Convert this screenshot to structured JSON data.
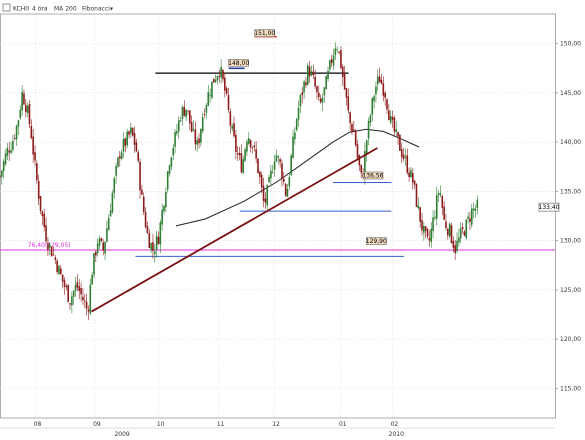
{
  "legend": {
    "symbol": "KCH0",
    "interval": "4 óra",
    "ma": "MA 200",
    "fib": "Fibonacci",
    "arrow": "▾"
  },
  "colors": {
    "candle_up": "#2e7d32",
    "candle_down": "#8b1a1a",
    "ma": "#222222",
    "trendline": "#7a1010",
    "support": "#3a5fd0",
    "resistance": "#000000",
    "fib": "#e030e0",
    "callout_bg": "#f2dcc0",
    "red_mark": "#e02020",
    "blue_mark": "#2a3fa0"
  },
  "chart_data": {
    "type": "candlestick",
    "ylim": [
      112,
      153
    ],
    "y_ticks": [
      {
        "value": 150,
        "label": "150,00"
      },
      {
        "value": 145,
        "label": "145,00"
      },
      {
        "value": 140,
        "label": "140,00"
      },
      {
        "value": 135,
        "label": "135,00"
      },
      {
        "value": 130,
        "label": "130,00"
      },
      {
        "value": 125,
        "label": "125,00"
      },
      {
        "value": 120,
        "label": "120,00"
      },
      {
        "value": 115,
        "label": "115,00"
      }
    ],
    "x_ticks": [
      {
        "label": "08",
        "pos": 0.064
      },
      {
        "label": "09",
        "pos": 0.171
      },
      {
        "label": "10",
        "pos": 0.286
      },
      {
        "label": "11",
        "pos": 0.394
      },
      {
        "label": "12",
        "pos": 0.494
      },
      {
        "label": "01",
        "pos": 0.614
      },
      {
        "label": "02",
        "pos": 0.707
      }
    ],
    "year_ticks": [
      {
        "label": "2009",
        "pos": 0.22
      },
      {
        "label": "2010",
        "pos": 0.714
      }
    ],
    "last_price": {
      "value": 133.4,
      "label": "133,40"
    },
    "callouts": [
      {
        "label": "151,00",
        "value": 151.0,
        "pos": 0.477
      },
      {
        "label": "148,00",
        "value": 148.0,
        "pos": 0.43
      },
      {
        "label": "136,56",
        "value": 136.56,
        "pos": 0.672
      },
      {
        "label": "129,90",
        "value": 129.9,
        "pos": 0.678
      }
    ],
    "fib_label": "76,40(129,05)",
    "fibonacci": {
      "level": "76,40",
      "value": 129.05
    },
    "horizontal_levels": [
      {
        "name": "resistance",
        "value": 147.0,
        "from": 0.28,
        "to": 0.628
      },
      {
        "name": "support-upper",
        "value": 135.9,
        "from": 0.6,
        "to": 0.705
      },
      {
        "name": "support-mid",
        "value": 133.0,
        "from": 0.432,
        "to": 0.705
      },
      {
        "name": "support-low",
        "value": 128.4,
        "from": 0.244,
        "to": 0.728
      }
    ],
    "trendline": {
      "from": {
        "pos": 0.165,
        "value": 122.8
      },
      "to": {
        "pos": 0.68,
        "value": 139.4
      }
    },
    "ma200": [
      {
        "pos": 0.317,
        "value": 131.5
      },
      {
        "pos": 0.37,
        "value": 132.2
      },
      {
        "pos": 0.44,
        "value": 134.0
      },
      {
        "pos": 0.5,
        "value": 136.0
      },
      {
        "pos": 0.55,
        "value": 138.0
      },
      {
        "pos": 0.6,
        "value": 140.0
      },
      {
        "pos": 0.63,
        "value": 141.0
      },
      {
        "pos": 0.66,
        "value": 141.3
      },
      {
        "pos": 0.69,
        "value": 141.1
      },
      {
        "pos": 0.72,
        "value": 140.4
      },
      {
        "pos": 0.755,
        "value": 139.5
      }
    ],
    "price_path": [
      [
        0.0,
        136.5
      ],
      [
        0.012,
        139
      ],
      [
        0.022,
        140
      ],
      [
        0.032,
        142
      ],
      [
        0.04,
        145
      ],
      [
        0.048,
        143.5
      ],
      [
        0.056,
        141
      ],
      [
        0.064,
        137
      ],
      [
        0.074,
        133
      ],
      [
        0.085,
        130
      ],
      [
        0.1,
        128
      ],
      [
        0.112,
        126
      ],
      [
        0.126,
        124
      ],
      [
        0.138,
        125.5
      ],
      [
        0.15,
        124
      ],
      [
        0.158,
        122.8
      ],
      [
        0.166,
        127
      ],
      [
        0.176,
        130
      ],
      [
        0.186,
        129
      ],
      [
        0.196,
        132.5
      ],
      [
        0.206,
        136
      ],
      [
        0.216,
        139
      ],
      [
        0.226,
        140
      ],
      [
        0.236,
        141
      ],
      [
        0.245,
        139.5
      ],
      [
        0.256,
        134
      ],
      [
        0.266,
        130.5
      ],
      [
        0.276,
        129
      ],
      [
        0.286,
        130.5
      ],
      [
        0.296,
        134.5
      ],
      [
        0.306,
        138.5
      ],
      [
        0.316,
        140.5
      ],
      [
        0.326,
        143
      ],
      [
        0.336,
        143.5
      ],
      [
        0.346,
        141
      ],
      [
        0.356,
        139.5
      ],
      [
        0.366,
        143
      ],
      [
        0.376,
        145
      ],
      [
        0.386,
        146.5
      ],
      [
        0.396,
        147.5
      ],
      [
        0.406,
        145
      ],
      [
        0.416,
        141.5
      ],
      [
        0.426,
        139
      ],
      [
        0.436,
        137.5
      ],
      [
        0.446,
        141
      ],
      [
        0.456,
        139.5
      ],
      [
        0.466,
        137
      ],
      [
        0.476,
        133.5
      ],
      [
        0.486,
        136
      ],
      [
        0.496,
        139
      ],
      [
        0.506,
        137.5
      ],
      [
        0.516,
        134.5
      ],
      [
        0.526,
        139
      ],
      [
        0.536,
        143
      ],
      [
        0.546,
        145.5
      ],
      [
        0.556,
        147.5
      ],
      [
        0.566,
        146
      ],
      [
        0.576,
        143.5
      ],
      [
        0.586,
        145.5
      ],
      [
        0.596,
        148
      ],
      [
        0.606,
        150.3
      ],
      [
        0.614,
        148
      ],
      [
        0.622,
        145
      ],
      [
        0.63,
        142
      ],
      [
        0.638,
        141
      ],
      [
        0.644,
        138.5
      ],
      [
        0.652,
        136
      ],
      [
        0.66,
        140
      ],
      [
        0.668,
        143
      ],
      [
        0.676,
        145.5
      ],
      [
        0.684,
        146.5
      ],
      [
        0.694,
        145
      ],
      [
        0.704,
        142
      ],
      [
        0.714,
        140.5
      ],
      [
        0.724,
        139
      ],
      [
        0.734,
        137.5
      ],
      [
        0.744,
        136
      ],
      [
        0.752,
        133.5
      ],
      [
        0.762,
        131
      ],
      [
        0.772,
        129.5
      ],
      [
        0.782,
        132.5
      ],
      [
        0.792,
        135.5
      ],
      [
        0.8,
        132
      ],
      [
        0.81,
        131
      ],
      [
        0.82,
        129.2
      ],
      [
        0.83,
        130.5
      ],
      [
        0.84,
        131.5
      ],
      [
        0.85,
        133
      ],
      [
        0.86,
        133.4
      ]
    ]
  }
}
